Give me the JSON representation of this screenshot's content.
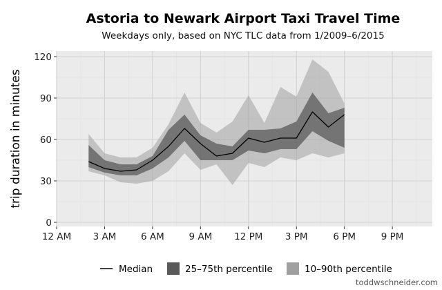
{
  "chart_data": {
    "type": "area",
    "title": "Astoria to Newark Airport Taxi Travel Time",
    "subtitle": "Weekdays only, based on NYC TLC data from 1/2009–6/2015",
    "xlabel": "",
    "ylabel": "trip duration in minutes",
    "xlim": [
      0,
      23.5
    ],
    "ylim": [
      -3,
      124
    ],
    "xticks": [
      0,
      3,
      6,
      9,
      12,
      15,
      18,
      21
    ],
    "xtick_labels": [
      "12 AM",
      "3 AM",
      "6 AM",
      "9 AM",
      "12 PM",
      "3 PM",
      "6 PM",
      "9 PM"
    ],
    "yticks": [
      0,
      30,
      60,
      90,
      120
    ],
    "ytick_labels": [
      "0",
      "30",
      "60",
      "90",
      "120"
    ],
    "grid": true,
    "legend_position": "bottom",
    "x": [
      2,
      3,
      4,
      5,
      6,
      7,
      8,
      9,
      10,
      11,
      12,
      13,
      14,
      15,
      16,
      17,
      18
    ],
    "series": [
      {
        "name": "Median",
        "kind": "line",
        "color": "#000000",
        "values": [
          44,
          39,
          37,
          38,
          45,
          55,
          68,
          57,
          48,
          50,
          61,
          58,
          61,
          61,
          80,
          69,
          78
        ]
      },
      {
        "name": "25–75th percentile",
        "kind": "band",
        "color": "#5a5a5a",
        "lower": [
          40,
          36,
          34,
          34,
          39,
          47,
          59,
          45,
          45,
          45,
          52,
          50,
          53,
          53,
          66,
          59,
          54
        ],
        "upper": [
          56,
          45,
          42,
          42,
          48,
          67,
          78,
          63,
          57,
          55,
          67,
          67,
          68,
          73,
          94,
          79,
          83
        ]
      },
      {
        "name": "10–90th percentile",
        "kind": "band",
        "color": "#a0a0a0",
        "lower": [
          37,
          34,
          29,
          28,
          30,
          37,
          50,
          38,
          42,
          27,
          43,
          40,
          47,
          45,
          50,
          47,
          50
        ],
        "upper": [
          64,
          50,
          47,
          47,
          54,
          71,
          94,
          72,
          65,
          73,
          92,
          72,
          98,
          91,
          118,
          109,
          86
        ]
      }
    ]
  },
  "credit": "toddwschneider.com",
  "colors": {
    "panel_background": "#ebebeb",
    "grid_major": "#d2d2d2",
    "grid_minor": "#e3e3e3"
  }
}
